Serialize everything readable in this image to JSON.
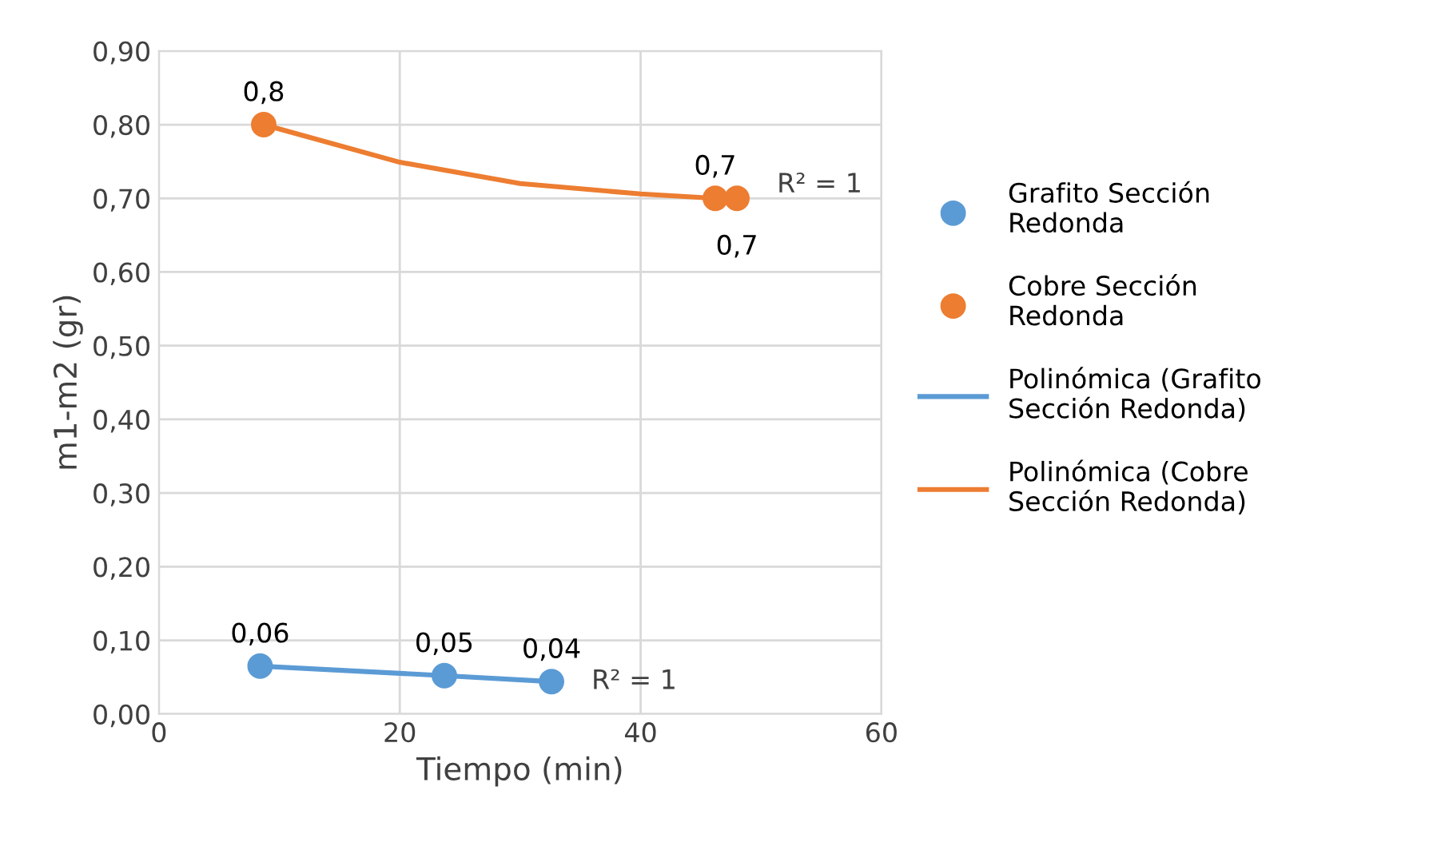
{
  "chart_data": {
    "type": "scatter",
    "xlabel": "Tiempo (min)",
    "ylabel": "m1-m2 (gr)",
    "xlim": [
      0,
      60
    ],
    "xticks": [
      0,
      20,
      40,
      60
    ],
    "ylim": [
      0,
      0.9
    ],
    "yticks": [
      {
        "value": 0,
        "label": "0,00"
      },
      {
        "value": 0.1,
        "label": "0,10"
      },
      {
        "value": 0.2,
        "label": "0,20"
      },
      {
        "value": 0.3,
        "label": "0,30"
      },
      {
        "value": 0.4,
        "label": "0,40"
      },
      {
        "value": 0.5,
        "label": "0,50"
      },
      {
        "value": 0.6,
        "label": "0,60"
      },
      {
        "value": 0.7,
        "label": "0,70"
      },
      {
        "value": 0.8,
        "label": "0,80"
      },
      {
        "value": 0.9,
        "label": "0,90"
      }
    ],
    "grid": true,
    "legend": "right",
    "series": [
      {
        "name": "Grafito Sección Redonda",
        "marker": "circle",
        "color": "#5b9bd5",
        "x": [
          8.4,
          23.7,
          32.6
        ],
        "values": [
          0.065,
          0.052,
          0.044
        ],
        "value_labels": [
          "0,06",
          "0,05",
          "0,04"
        ]
      },
      {
        "name": "Cobre Sección Redonda",
        "marker": "circle",
        "color": "#ed7d31",
        "x": [
          8.7,
          46.2,
          48.0
        ],
        "values": [
          0.8,
          0.7,
          0.7
        ],
        "value_labels": [
          "0,8",
          "0,7",
          "0,7"
        ]
      },
      {
        "name": "Polinómica (Grafito Sección Redonda)",
        "type": "line",
        "color": "#5b9bd5",
        "x": [
          8.4,
          23.7,
          32.6
        ],
        "values": [
          0.065,
          0.052,
          0.044
        ]
      },
      {
        "name": "Polinómica (Cobre Sección Redonda)",
        "type": "line",
        "color": "#ed7d31",
        "x": [
          8.7,
          20,
          30,
          40,
          46.2,
          48.0
        ],
        "values": [
          0.8,
          0.749,
          0.72,
          0.706,
          0.7,
          0.7
        ]
      }
    ],
    "annotations": [
      "R² = 1",
      "R² = 1"
    ]
  }
}
